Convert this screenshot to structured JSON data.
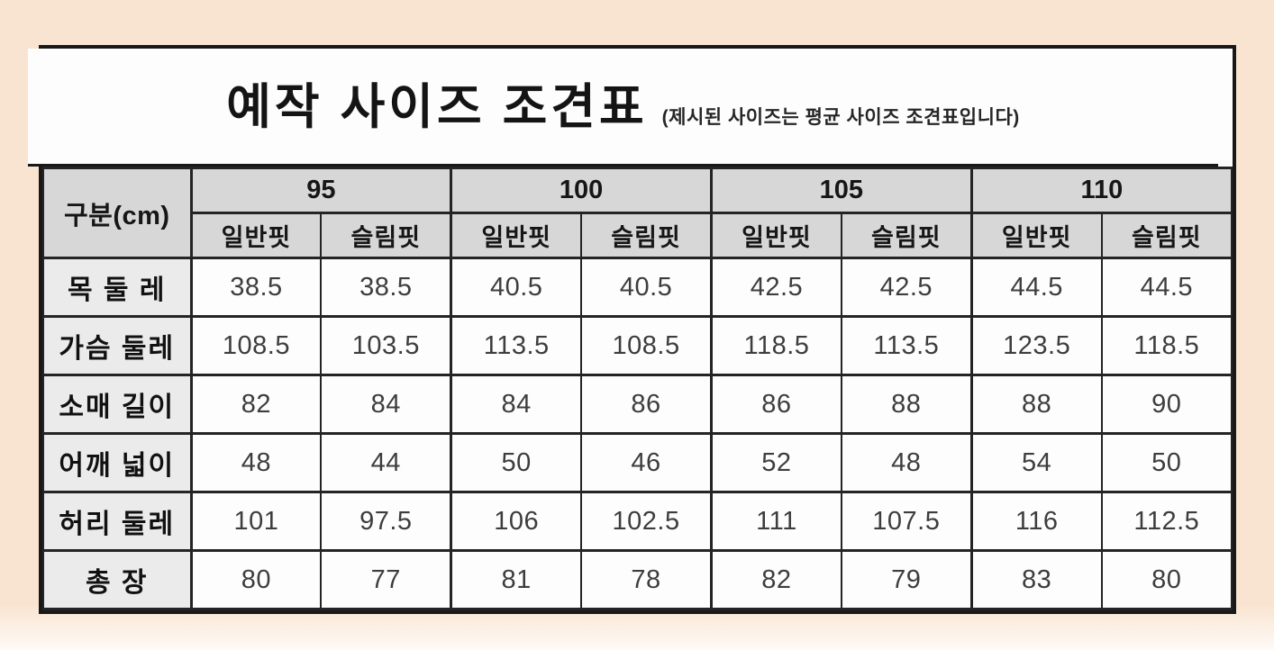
{
  "chart_data": {
    "type": "table",
    "title": "예작 사이즈 조견표",
    "subtitle": "(제시된 사이즈는 평균 사이즈 조견표입니다)",
    "corner_label": "구분(cm)",
    "unit": "cm",
    "column_groups": [
      "95",
      "100",
      "105",
      "110"
    ],
    "sub_columns": [
      "일반핏",
      "슬림핏"
    ],
    "columns": [
      "95 일반핏",
      "95 슬림핏",
      "100 일반핏",
      "100 슬림핏",
      "105 일반핏",
      "105 슬림핏",
      "110 일반핏",
      "110 슬림핏"
    ],
    "rows": [
      {
        "label": "목 둘 레",
        "values": [
          "38.5",
          "38.5",
          "40.5",
          "40.5",
          "42.5",
          "42.5",
          "44.5",
          "44.5"
        ]
      },
      {
        "label": "가슴 둘레",
        "values": [
          "108.5",
          "103.5",
          "113.5",
          "108.5",
          "118.5",
          "113.5",
          "123.5",
          "118.5"
        ]
      },
      {
        "label": "소매 길이",
        "values": [
          "82",
          "84",
          "84",
          "86",
          "86",
          "88",
          "88",
          "90"
        ]
      },
      {
        "label": "어깨 넓이",
        "values": [
          "48",
          "44",
          "50",
          "46",
          "52",
          "48",
          "54",
          "50"
        ]
      },
      {
        "label": "허리 둘레",
        "values": [
          "101",
          "97.5",
          "106",
          "102.5",
          "111",
          "107.5",
          "116",
          "112.5"
        ]
      },
      {
        "label": "총 장",
        "values": [
          "80",
          "77",
          "81",
          "78",
          "82",
          "79",
          "83",
          "80"
        ]
      }
    ]
  },
  "colors": {
    "page_background": "#f9e4d1",
    "table_background": "#fdfdfd",
    "header_background": "#d7d7d7",
    "row_label_background": "#ebebeb",
    "border": "#181818",
    "value_text": "#3d3d3d"
  }
}
